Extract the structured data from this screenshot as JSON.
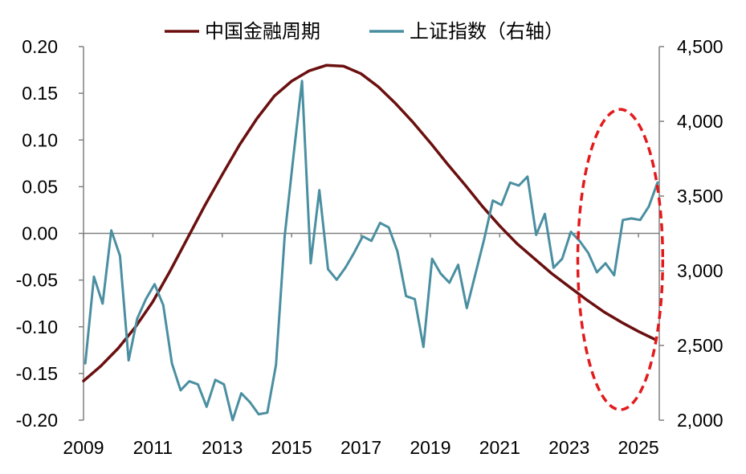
{
  "chart_data": {
    "type": "line",
    "title": "",
    "legend": {
      "placement": "top-center",
      "entries": [
        "中国金融周期",
        "上证指数（右轴）"
      ]
    },
    "x_axis": {
      "ticks": [
        "2009",
        "2011",
        "2013",
        "2015",
        "2017",
        "2019",
        "2021",
        "2023",
        "2025"
      ],
      "range": [
        2009,
        2025.6
      ]
    },
    "y_left": {
      "range": [
        -0.2,
        0.2
      ],
      "ticks": [
        -0.2,
        -0.15,
        -0.1,
        -0.05,
        0.0,
        0.05,
        0.1,
        0.15,
        0.2
      ],
      "tick_labels": [
        "-0.20",
        "-0.15",
        "-0.10",
        "-0.05",
        "0.00",
        "0.05",
        "0.10",
        "0.15",
        "0.20"
      ]
    },
    "y_right": {
      "range": [
        2000,
        4500
      ],
      "ticks": [
        2000,
        2500,
        3000,
        3500,
        4000,
        4500
      ],
      "tick_labels": [
        "2,000",
        "2,500",
        "3,000",
        "3,500",
        "4,000",
        "4,500"
      ]
    },
    "series": [
      {
        "name": "中国金融周期",
        "axis": "left",
        "color": "#6b0f0f",
        "x": [
          2009.0,
          2009.5,
          2010.0,
          2010.5,
          2011.0,
          2011.5,
          2012.0,
          2012.5,
          2013.0,
          2013.5,
          2014.0,
          2014.5,
          2015.0,
          2015.5,
          2016.0,
          2016.5,
          2017.0,
          2017.5,
          2018.0,
          2018.5,
          2019.0,
          2019.5,
          2020.0,
          2020.5,
          2021.0,
          2021.5,
          2022.0,
          2022.5,
          2023.0,
          2023.5,
          2024.0,
          2024.5,
          2025.0,
          2025.5
        ],
        "y": [
          -0.158,
          -0.142,
          -0.123,
          -0.1,
          -0.073,
          -0.04,
          -0.005,
          0.03,
          0.063,
          0.095,
          0.123,
          0.147,
          0.163,
          0.174,
          0.18,
          0.179,
          0.171,
          0.157,
          0.139,
          0.119,
          0.097,
          0.074,
          0.052,
          0.029,
          0.008,
          -0.011,
          -0.027,
          -0.043,
          -0.057,
          -0.071,
          -0.084,
          -0.095,
          -0.105,
          -0.114
        ]
      },
      {
        "name": "上证指数（右轴）",
        "axis": "right",
        "color": "#4a8fa1",
        "x": [
          2009.05,
          2009.3,
          2009.55,
          2009.8,
          2010.05,
          2010.3,
          2010.55,
          2010.8,
          2011.05,
          2011.3,
          2011.55,
          2011.8,
          2012.05,
          2012.3,
          2012.55,
          2012.8,
          2013.05,
          2013.3,
          2013.55,
          2013.8,
          2014.05,
          2014.3,
          2014.55,
          2014.8,
          2015.05,
          2015.3,
          2015.55,
          2015.8,
          2016.05,
          2016.3,
          2016.55,
          2016.8,
          2017.05,
          2017.3,
          2017.55,
          2017.8,
          2018.05,
          2018.3,
          2018.55,
          2018.8,
          2019.05,
          2019.3,
          2019.55,
          2019.8,
          2020.05,
          2020.3,
          2020.55,
          2020.8,
          2021.05,
          2021.3,
          2021.55,
          2021.8,
          2022.05,
          2022.3,
          2022.55,
          2022.8,
          2023.05,
          2023.3,
          2023.55,
          2023.8,
          2024.05,
          2024.3,
          2024.55,
          2024.8,
          2025.05,
          2025.3,
          2025.55
        ],
        "y": [
          2380,
          2960,
          2780,
          3270,
          3100,
          2400,
          2680,
          2810,
          2910,
          2770,
          2380,
          2200,
          2260,
          2240,
          2090,
          2270,
          2240,
          2000,
          2180,
          2120,
          2040,
          2050,
          2370,
          3230,
          3760,
          4270,
          3050,
          3540,
          3010,
          2940,
          3020,
          3120,
          3230,
          3200,
          3320,
          3290,
          3130,
          2830,
          2810,
          2490,
          3080,
          2980,
          2920,
          3040,
          2750,
          2980,
          3210,
          3470,
          3440,
          3590,
          3570,
          3630,
          3240,
          3380,
          3020,
          3080,
          3260,
          3200,
          3120,
          2990,
          3050,
          2970,
          3340,
          3350,
          3340,
          3430,
          3590
        ]
      }
    ],
    "highlight": {
      "shape": "dashed-ellipse",
      "color": "#e31a1c",
      "x_range": [
        2023.25,
        2025.7
      ],
      "y_right_range": [
        2070,
        4080
      ]
    }
  }
}
